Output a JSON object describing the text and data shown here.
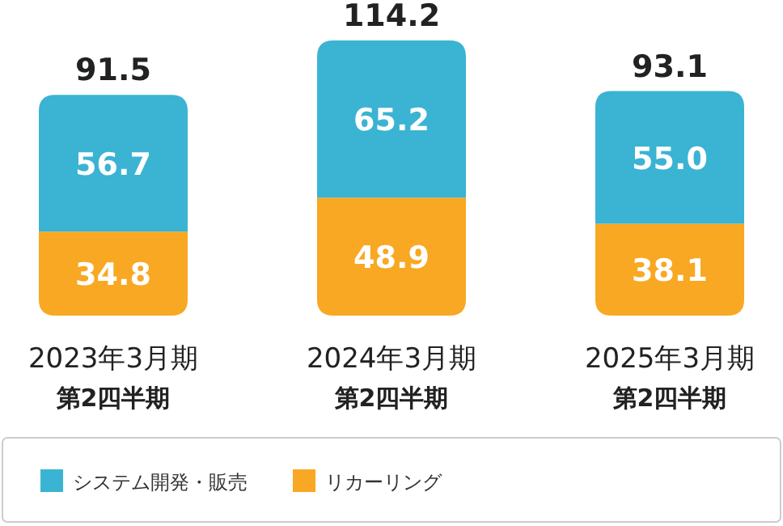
{
  "chart_data": {
    "type": "bar",
    "stacked": true,
    "tick_labels": "x",
    "legend": "bottom",
    "categories": [
      "2023年3月期第2四半期",
      "2024年3月期第2四半期",
      "2025年3月期第2四半期"
    ],
    "series": [
      {
        "name": "リカーリング",
        "color": "#f8a822",
        "values": [
          34.8,
          48.9,
          38.1
        ],
        "value_labels": [
          "34.8",
          "48.9",
          "38.1"
        ]
      },
      {
        "name": "システム開発・販売",
        "color": "#3bb3d3",
        "values": [
          56.7,
          65.2,
          55.0
        ],
        "value_labels": [
          "56.7",
          "65.2",
          "55.0"
        ]
      }
    ],
    "totals": [
      "91.5",
      "114.2",
      "93.1"
    ]
  }
}
